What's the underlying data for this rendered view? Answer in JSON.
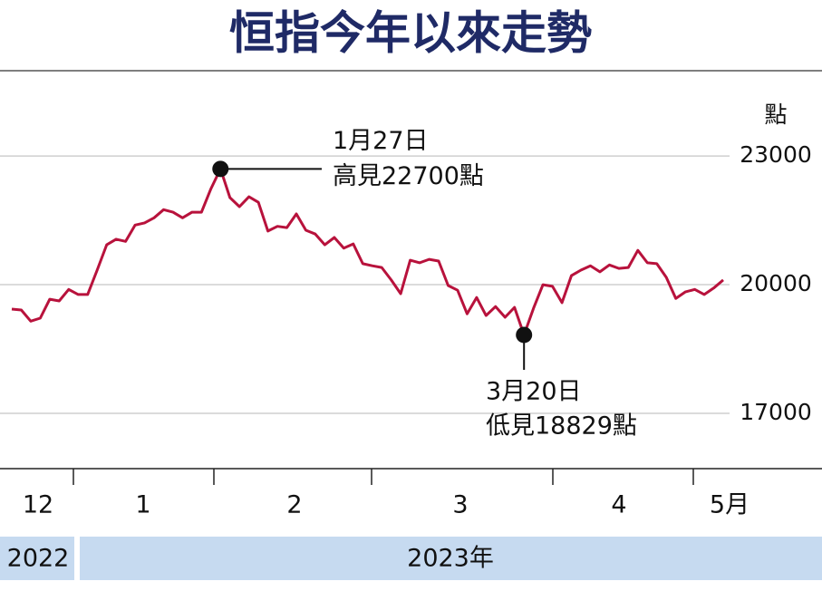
{
  "chart_data": {
    "type": "line",
    "title": "恒指今年以來走勢",
    "y_unit": "點",
    "month_labels": [
      "12",
      "1",
      "2",
      "3",
      "4",
      "5月"
    ],
    "year_labels": [
      "2022",
      "2023年"
    ],
    "ylim": [
      15710,
      24990
    ],
    "yticks": [
      17000,
      20000,
      23000
    ],
    "grid": true,
    "series": [
      {
        "color": "#b8123c",
        "values": [
          19430,
          19410,
          19150,
          19220,
          19660,
          19620,
          19890,
          19770,
          19770,
          20340,
          20930,
          21060,
          21010,
          21390,
          21440,
          21560,
          21750,
          21690,
          21560,
          21690,
          21690,
          22240,
          22700,
          22030,
          21820,
          22050,
          21920,
          21250,
          21360,
          21330,
          21650,
          21270,
          21180,
          20930,
          21100,
          20850,
          20950,
          20490,
          20440,
          20400,
          20110,
          19790,
          20570,
          20510,
          20590,
          20550,
          19980,
          19870,
          19320,
          19700,
          19280,
          19490,
          19240,
          19470,
          18829,
          19450,
          20000,
          19960,
          19580,
          20210,
          20340,
          20440,
          20300,
          20460,
          20380,
          20400,
          20800,
          20510,
          20490,
          20170,
          19680,
          19830,
          19890,
          19770,
          19920,
          20110
        ]
      }
    ],
    "annotations": [
      {
        "date": "1月27日",
        "text": "高見22700點"
      },
      {
        "date": "3月20日",
        "text": "低見18829點"
      }
    ]
  }
}
